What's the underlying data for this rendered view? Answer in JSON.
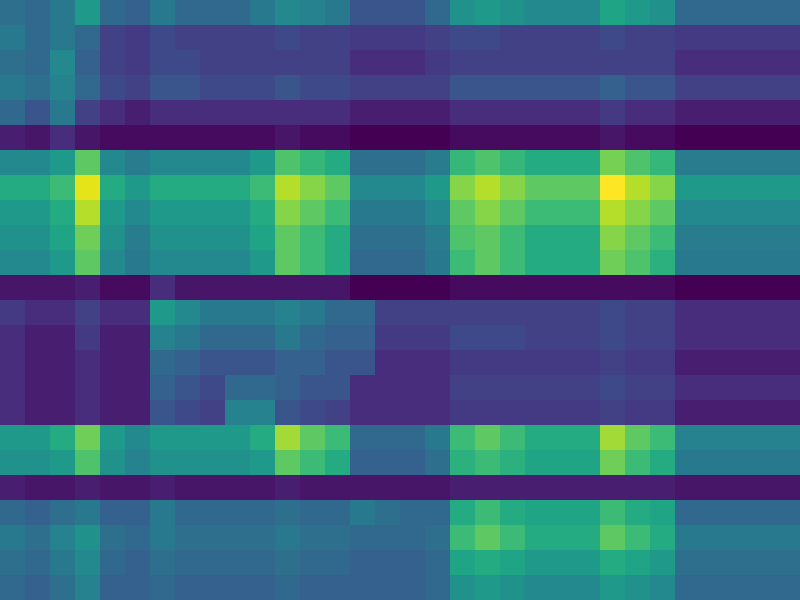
{
  "chart_data": {
    "type": "heatmap",
    "color": "viridis",
    "tick_labels": false,
    "z": [
      [
        0.32,
        0.3,
        0.35,
        0.45,
        0.3,
        0.28,
        0.35,
        0.3,
        0.3,
        0.3,
        0.35,
        0.4,
        0.38,
        0.35,
        0.25,
        0.25,
        0.25,
        0.3,
        0.42,
        0.45,
        0.42,
        0.4,
        0.4,
        0.4,
        0.48,
        0.45,
        0.42,
        0.3,
        0.3,
        0.3,
        0.3,
        0.3
      ],
      [
        0.35,
        0.3,
        0.35,
        0.3,
        0.2,
        0.18,
        0.22,
        0.2,
        0.2,
        0.2,
        0.2,
        0.22,
        0.2,
        0.2,
        0.18,
        0.18,
        0.18,
        0.2,
        0.22,
        0.22,
        0.2,
        0.2,
        0.2,
        0.2,
        0.22,
        0.2,
        0.2,
        0.18,
        0.18,
        0.18,
        0.18,
        0.18
      ],
      [
        0.32,
        0.3,
        0.4,
        0.28,
        0.2,
        0.18,
        0.22,
        0.22,
        0.2,
        0.2,
        0.2,
        0.2,
        0.2,
        0.2,
        0.15,
        0.15,
        0.15,
        0.18,
        0.2,
        0.2,
        0.2,
        0.2,
        0.2,
        0.2,
        0.2,
        0.2,
        0.2,
        0.15,
        0.15,
        0.15,
        0.15,
        0.15
      ],
      [
        0.35,
        0.32,
        0.38,
        0.3,
        0.22,
        0.2,
        0.25,
        0.25,
        0.22,
        0.22,
        0.22,
        0.25,
        0.22,
        0.22,
        0.2,
        0.2,
        0.2,
        0.2,
        0.25,
        0.25,
        0.25,
        0.25,
        0.25,
        0.25,
        0.28,
        0.25,
        0.25,
        0.2,
        0.2,
        0.2,
        0.2,
        0.2
      ],
      [
        0.3,
        0.25,
        0.35,
        0.2,
        0.15,
        0.12,
        0.15,
        0.15,
        0.15,
        0.15,
        0.15,
        0.15,
        0.15,
        0.15,
        0.12,
        0.12,
        0.12,
        0.12,
        0.15,
        0.15,
        0.15,
        0.15,
        0.15,
        0.15,
        0.18,
        0.15,
        0.15,
        0.12,
        0.12,
        0.12,
        0.12,
        0.12
      ],
      [
        0.12,
        0.1,
        0.15,
        0.1,
        0.08,
        0.08,
        0.08,
        0.08,
        0.08,
        0.08,
        0.08,
        0.1,
        0.08,
        0.08,
        0.06,
        0.06,
        0.06,
        0.06,
        0.08,
        0.08,
        0.08,
        0.08,
        0.08,
        0.08,
        0.1,
        0.08,
        0.08,
        0.06,
        0.06,
        0.06,
        0.06,
        0.06
      ],
      [
        0.4,
        0.4,
        0.45,
        0.6,
        0.4,
        0.36,
        0.4,
        0.4,
        0.4,
        0.4,
        0.45,
        0.58,
        0.54,
        0.5,
        0.32,
        0.32,
        0.32,
        0.36,
        0.54,
        0.58,
        0.54,
        0.5,
        0.5,
        0.5,
        0.63,
        0.58,
        0.54,
        0.36,
        0.36,
        0.36,
        0.36,
        0.36
      ],
      [
        0.5,
        0.5,
        0.55,
        0.75,
        0.5,
        0.45,
        0.5,
        0.5,
        0.5,
        0.5,
        0.55,
        0.7,
        0.65,
        0.6,
        0.4,
        0.4,
        0.4,
        0.45,
        0.65,
        0.7,
        0.65,
        0.6,
        0.6,
        0.6,
        0.78,
        0.7,
        0.65,
        0.45,
        0.45,
        0.45,
        0.45,
        0.45
      ],
      [
        0.45,
        0.45,
        0.5,
        0.7,
        0.45,
        0.4,
        0.45,
        0.45,
        0.45,
        0.45,
        0.5,
        0.65,
        0.6,
        0.55,
        0.35,
        0.35,
        0.35,
        0.4,
        0.6,
        0.65,
        0.6,
        0.55,
        0.55,
        0.55,
        0.7,
        0.65,
        0.6,
        0.4,
        0.4,
        0.4,
        0.4,
        0.4
      ],
      [
        0.42,
        0.42,
        0.48,
        0.62,
        0.42,
        0.36,
        0.42,
        0.42,
        0.42,
        0.42,
        0.48,
        0.6,
        0.55,
        0.5,
        0.32,
        0.32,
        0.32,
        0.36,
        0.58,
        0.6,
        0.55,
        0.5,
        0.5,
        0.5,
        0.65,
        0.6,
        0.55,
        0.36,
        0.36,
        0.36,
        0.36,
        0.36
      ],
      [
        0.4,
        0.4,
        0.45,
        0.6,
        0.4,
        0.35,
        0.4,
        0.4,
        0.4,
        0.4,
        0.45,
        0.6,
        0.55,
        0.5,
        0.3,
        0.3,
        0.3,
        0.35,
        0.55,
        0.6,
        0.55,
        0.5,
        0.5,
        0.5,
        0.62,
        0.58,
        0.52,
        0.35,
        0.35,
        0.35,
        0.35,
        0.35
      ],
      [
        0.1,
        0.1,
        0.1,
        0.12,
        0.08,
        0.08,
        0.15,
        0.1,
        0.1,
        0.1,
        0.1,
        0.1,
        0.1,
        0.1,
        0.06,
        0.06,
        0.06,
        0.06,
        0.08,
        0.08,
        0.08,
        0.08,
        0.08,
        0.08,
        0.08,
        0.08,
        0.08,
        0.06,
        0.06,
        0.06,
        0.06,
        0.06
      ],
      [
        0.18,
        0.15,
        0.15,
        0.2,
        0.15,
        0.15,
        0.45,
        0.4,
        0.35,
        0.35,
        0.35,
        0.38,
        0.35,
        0.3,
        0.3,
        0.2,
        0.2,
        0.2,
        0.2,
        0.2,
        0.2,
        0.2,
        0.2,
        0.2,
        0.22,
        0.2,
        0.2,
        0.15,
        0.15,
        0.15,
        0.15,
        0.15
      ],
      [
        0.15,
        0.12,
        0.12,
        0.18,
        0.12,
        0.12,
        0.38,
        0.35,
        0.3,
        0.3,
        0.3,
        0.35,
        0.3,
        0.28,
        0.28,
        0.18,
        0.18,
        0.18,
        0.22,
        0.22,
        0.22,
        0.2,
        0.2,
        0.2,
        0.22,
        0.2,
        0.2,
        0.15,
        0.15,
        0.15,
        0.15,
        0.15
      ],
      [
        0.15,
        0.12,
        0.12,
        0.15,
        0.12,
        0.12,
        0.3,
        0.28,
        0.25,
        0.25,
        0.25,
        0.28,
        0.28,
        0.25,
        0.25,
        0.15,
        0.15,
        0.15,
        0.18,
        0.18,
        0.18,
        0.18,
        0.18,
        0.18,
        0.2,
        0.18,
        0.18,
        0.12,
        0.12,
        0.12,
        0.12,
        0.12
      ],
      [
        0.15,
        0.12,
        0.12,
        0.15,
        0.12,
        0.12,
        0.28,
        0.25,
        0.22,
        0.3,
        0.3,
        0.28,
        0.25,
        0.25,
        0.15,
        0.15,
        0.15,
        0.15,
        0.2,
        0.2,
        0.2,
        0.2,
        0.2,
        0.2,
        0.22,
        0.2,
        0.2,
        0.15,
        0.15,
        0.15,
        0.15,
        0.15
      ],
      [
        0.15,
        0.12,
        0.12,
        0.15,
        0.12,
        0.12,
        0.25,
        0.22,
        0.2,
        0.38,
        0.38,
        0.25,
        0.22,
        0.2,
        0.15,
        0.15,
        0.15,
        0.15,
        0.18,
        0.18,
        0.18,
        0.18,
        0.18,
        0.18,
        0.2,
        0.18,
        0.18,
        0.12,
        0.12,
        0.12,
        0.12,
        0.12
      ],
      [
        0.45,
        0.45,
        0.5,
        0.62,
        0.45,
        0.4,
        0.45,
        0.45,
        0.45,
        0.45,
        0.5,
        0.68,
        0.6,
        0.55,
        0.3,
        0.3,
        0.3,
        0.35,
        0.55,
        0.6,
        0.55,
        0.5,
        0.5,
        0.5,
        0.68,
        0.6,
        0.55,
        0.38,
        0.38,
        0.38,
        0.38,
        0.38
      ],
      [
        0.42,
        0.42,
        0.45,
        0.58,
        0.42,
        0.38,
        0.42,
        0.42,
        0.42,
        0.42,
        0.45,
        0.6,
        0.55,
        0.5,
        0.28,
        0.28,
        0.28,
        0.32,
        0.52,
        0.55,
        0.52,
        0.48,
        0.48,
        0.48,
        0.62,
        0.55,
        0.5,
        0.35,
        0.35,
        0.35,
        0.35,
        0.35
      ],
      [
        0.12,
        0.1,
        0.1,
        0.12,
        0.1,
        0.1,
        0.12,
        0.1,
        0.1,
        0.1,
        0.1,
        0.12,
        0.1,
        0.1,
        0.1,
        0.1,
        0.1,
        0.1,
        0.12,
        0.12,
        0.12,
        0.12,
        0.12,
        0.12,
        0.12,
        0.12,
        0.12,
        0.1,
        0.1,
        0.1,
        0.1,
        0.1
      ],
      [
        0.3,
        0.28,
        0.32,
        0.35,
        0.28,
        0.28,
        0.35,
        0.3,
        0.3,
        0.3,
        0.3,
        0.32,
        0.3,
        0.3,
        0.35,
        0.32,
        0.3,
        0.3,
        0.5,
        0.55,
        0.5,
        0.48,
        0.48,
        0.48,
        0.55,
        0.5,
        0.48,
        0.3,
        0.3,
        0.3,
        0.3,
        0.3
      ],
      [
        0.35,
        0.32,
        0.38,
        0.42,
        0.32,
        0.3,
        0.35,
        0.32,
        0.32,
        0.32,
        0.32,
        0.35,
        0.32,
        0.32,
        0.3,
        0.3,
        0.3,
        0.32,
        0.55,
        0.6,
        0.55,
        0.5,
        0.5,
        0.5,
        0.6,
        0.55,
        0.5,
        0.35,
        0.35,
        0.35,
        0.35,
        0.35
      ],
      [
        0.32,
        0.3,
        0.35,
        0.4,
        0.3,
        0.28,
        0.32,
        0.3,
        0.3,
        0.3,
        0.3,
        0.32,
        0.3,
        0.3,
        0.28,
        0.28,
        0.28,
        0.3,
        0.48,
        0.5,
        0.48,
        0.45,
        0.45,
        0.45,
        0.5,
        0.48,
        0.45,
        0.32,
        0.32,
        0.32,
        0.32,
        0.32
      ],
      [
        0.3,
        0.28,
        0.32,
        0.38,
        0.28,
        0.28,
        0.3,
        0.28,
        0.28,
        0.28,
        0.28,
        0.3,
        0.28,
        0.28,
        0.28,
        0.28,
        0.28,
        0.3,
        0.42,
        0.45,
        0.42,
        0.4,
        0.4,
        0.4,
        0.45,
        0.42,
        0.4,
        0.3,
        0.3,
        0.3,
        0.3,
        0.3
      ]
    ]
  }
}
